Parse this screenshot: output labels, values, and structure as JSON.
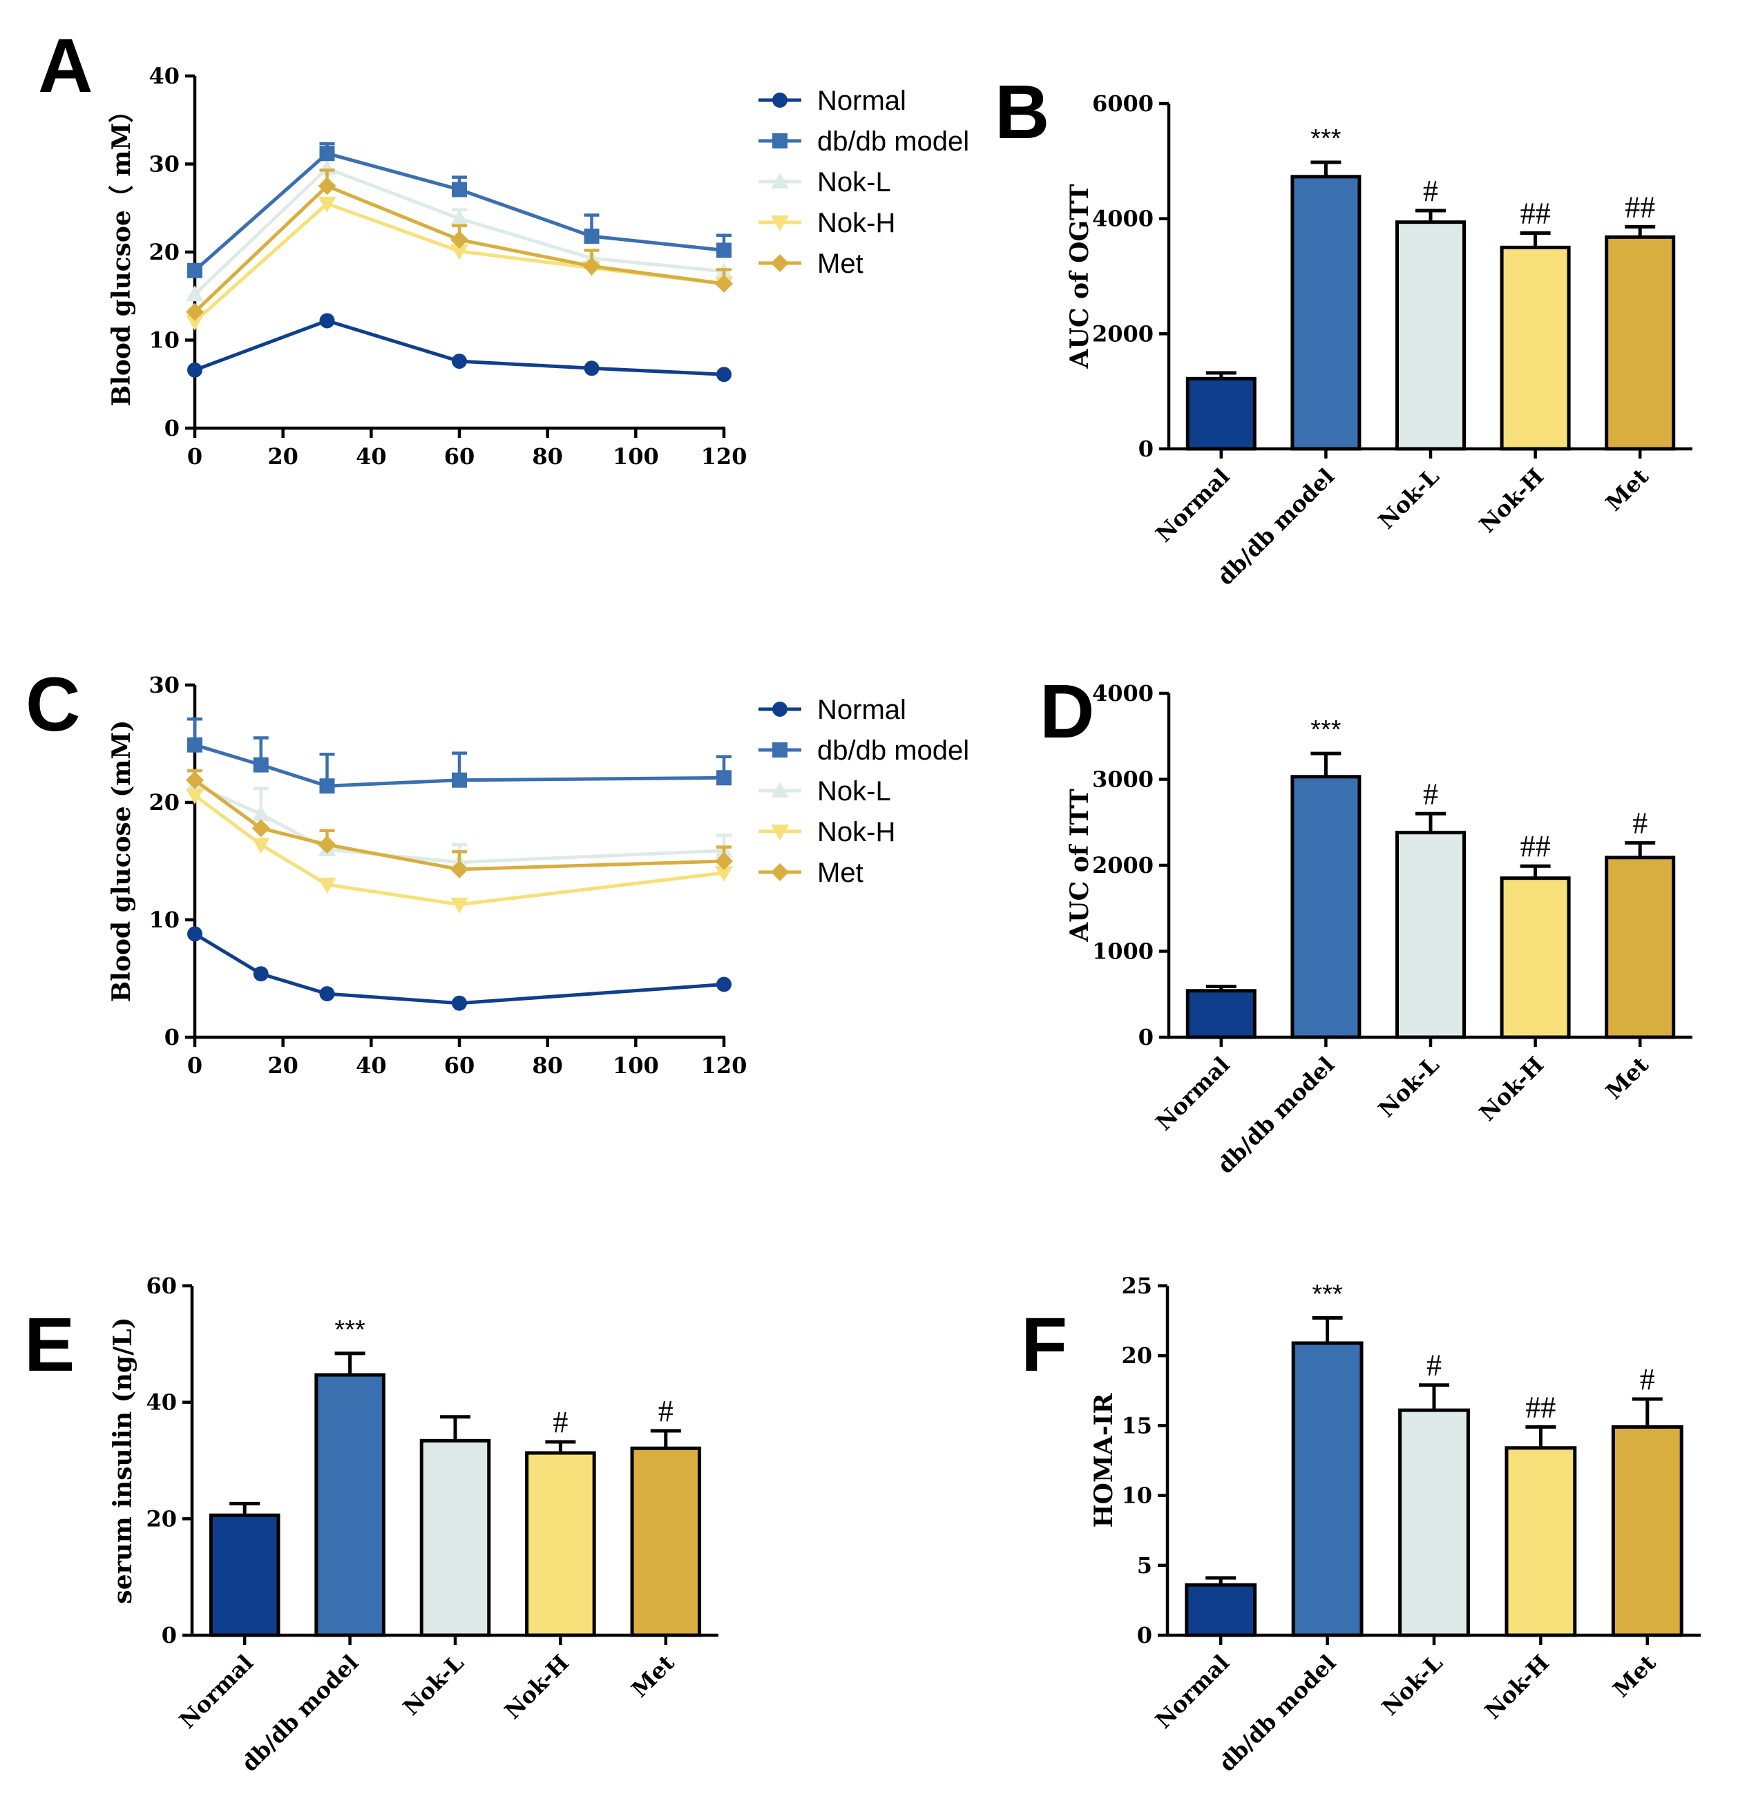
{
  "colors": {
    "Normal": "#0f3f8c",
    "db/db model": "#3a6fb0",
    "Nok-L": "#deeae8",
    "Nok-H": "#f7e07a",
    "Met": "#d7ae3f"
  },
  "chart_data": [
    {
      "panel": "A",
      "type": "line",
      "title": "",
      "xlabel": "",
      "ylabel": "Blood glucsoe（ mM）",
      "xlim": [
        0,
        120
      ],
      "ylim": [
        0,
        40
      ],
      "xticks": [
        "0",
        "20",
        "40",
        "60",
        "80",
        "100",
        "120"
      ],
      "yticks": [
        "0",
        "10",
        "20",
        "30",
        "40"
      ],
      "x": [
        0,
        30,
        60,
        90,
        120
      ],
      "series": [
        {
          "name": "Normal",
          "marker": "circle",
          "values": [
            6.6,
            12.2,
            7.6,
            6.8,
            6.1
          ],
          "err": [
            0,
            0,
            0,
            0,
            0
          ]
        },
        {
          "name": "db/db model",
          "marker": "square",
          "values": [
            17.9,
            31.2,
            27.1,
            21.8,
            20.2
          ],
          "err": [
            0,
            1.1,
            1.4,
            2.4,
            1.7
          ]
        },
        {
          "name": "Nok-L",
          "marker": "triangle-up",
          "values": [
            15.2,
            29.5,
            23.8,
            19.3,
            17.8
          ],
          "err": [
            0,
            0,
            1.0,
            0,
            0
          ]
        },
        {
          "name": "Nok-H",
          "marker": "triangle-down",
          "values": [
            12.1,
            25.5,
            20.1,
            18.2,
            16.4
          ],
          "err": [
            0,
            0,
            0,
            0,
            0
          ]
        },
        {
          "name": "Met",
          "marker": "diamond",
          "values": [
            13.2,
            27.5,
            21.4,
            18.4,
            16.4
          ],
          "err": [
            0,
            1.8,
            1.6,
            1.8,
            1.6
          ]
        }
      ]
    },
    {
      "panel": "B",
      "type": "bar",
      "ylabel": "AUC of OGTT",
      "ylim": [
        0,
        6000
      ],
      "yticks": [
        "0",
        "2000",
        "4000",
        "6000"
      ],
      "categories": [
        "Normal",
        "db/db model",
        "Nok-L",
        "Nok-H",
        "Met"
      ],
      "values": [
        1220,
        4730,
        3940,
        3500,
        3680
      ],
      "err": [
        100,
        250,
        200,
        250,
        180
      ],
      "annotations": [
        "",
        "***",
        "#",
        "##",
        "##"
      ]
    },
    {
      "panel": "C",
      "type": "line",
      "ylabel": "Blood glucose (mM)",
      "xlim": [
        0,
        120
      ],
      "ylim": [
        0,
        30
      ],
      "xticks": [
        "0",
        "20",
        "40",
        "60",
        "80",
        "100",
        "120"
      ],
      "yticks": [
        "0",
        "10",
        "20",
        "30"
      ],
      "x": [
        0,
        15,
        30,
        60,
        120
      ],
      "series": [
        {
          "name": "Normal",
          "marker": "circle",
          "values": [
            8.8,
            5.4,
            3.7,
            2.9,
            4.5
          ],
          "err": [
            0,
            0,
            0,
            0,
            0
          ]
        },
        {
          "name": "db/db model",
          "marker": "square",
          "values": [
            24.9,
            23.2,
            21.4,
            21.9,
            22.1
          ],
          "err": [
            2.2,
            2.3,
            2.7,
            2.3,
            1.8
          ]
        },
        {
          "name": "Nok-L",
          "marker": "triangle-up",
          "values": [
            21.5,
            19.0,
            16.0,
            14.9,
            15.9
          ],
          "err": [
            0,
            2.2,
            0,
            1.5,
            1.3
          ]
        },
        {
          "name": "Nok-H",
          "marker": "triangle-down",
          "values": [
            20.6,
            16.4,
            13.0,
            11.3,
            14.0
          ],
          "err": [
            0,
            0,
            0,
            0,
            0
          ]
        },
        {
          "name": "Met",
          "marker": "diamond",
          "values": [
            21.9,
            17.8,
            16.4,
            14.3,
            15.0
          ],
          "err": [
            0.8,
            0,
            1.2,
            1.5,
            1.2
          ]
        }
      ]
    },
    {
      "panel": "D",
      "type": "bar",
      "ylabel": "AUC of  ITT",
      "ylim": [
        0,
        4000
      ],
      "yticks": [
        "0",
        "1000",
        "2000",
        "3000",
        "4000"
      ],
      "categories": [
        "Normal",
        "db/db model",
        "Nok-L",
        "Nok-H",
        "Met"
      ],
      "values": [
        540,
        3030,
        2380,
        1850,
        2090
      ],
      "err": [
        50,
        270,
        220,
        140,
        170
      ],
      "annotations": [
        "",
        "***",
        "#",
        "##",
        "#"
      ]
    },
    {
      "panel": "E",
      "type": "bar",
      "ylabel": "serum insulin (ng/L)",
      "ylim": [
        0,
        60
      ],
      "yticks": [
        "0",
        "20",
        "40",
        "60"
      ],
      "categories": [
        "Normal",
        "db/db model",
        "Nok-L",
        "Nok-H",
        "Met"
      ],
      "values": [
        20.6,
        44.7,
        33.4,
        31.3,
        32.1
      ],
      "err": [
        2.0,
        3.7,
        4.1,
        1.9,
        3.0
      ],
      "annotations": [
        "",
        "***",
        "",
        "#",
        "#"
      ]
    },
    {
      "panel": "F",
      "type": "bar",
      "ylabel": "HOMA-IR",
      "ylim": [
        0,
        25
      ],
      "yticks": [
        "0",
        "5",
        "10",
        "15",
        "20",
        "25"
      ],
      "categories": [
        "Normal",
        "db/db model",
        "Nok-L",
        "Nok-H",
        "Met"
      ],
      "values": [
        3.6,
        20.9,
        16.1,
        13.4,
        14.9
      ],
      "err": [
        0.5,
        1.8,
        1.8,
        1.5,
        2.0
      ],
      "annotations": [
        "",
        "***",
        "#",
        "##",
        "#"
      ]
    }
  ]
}
